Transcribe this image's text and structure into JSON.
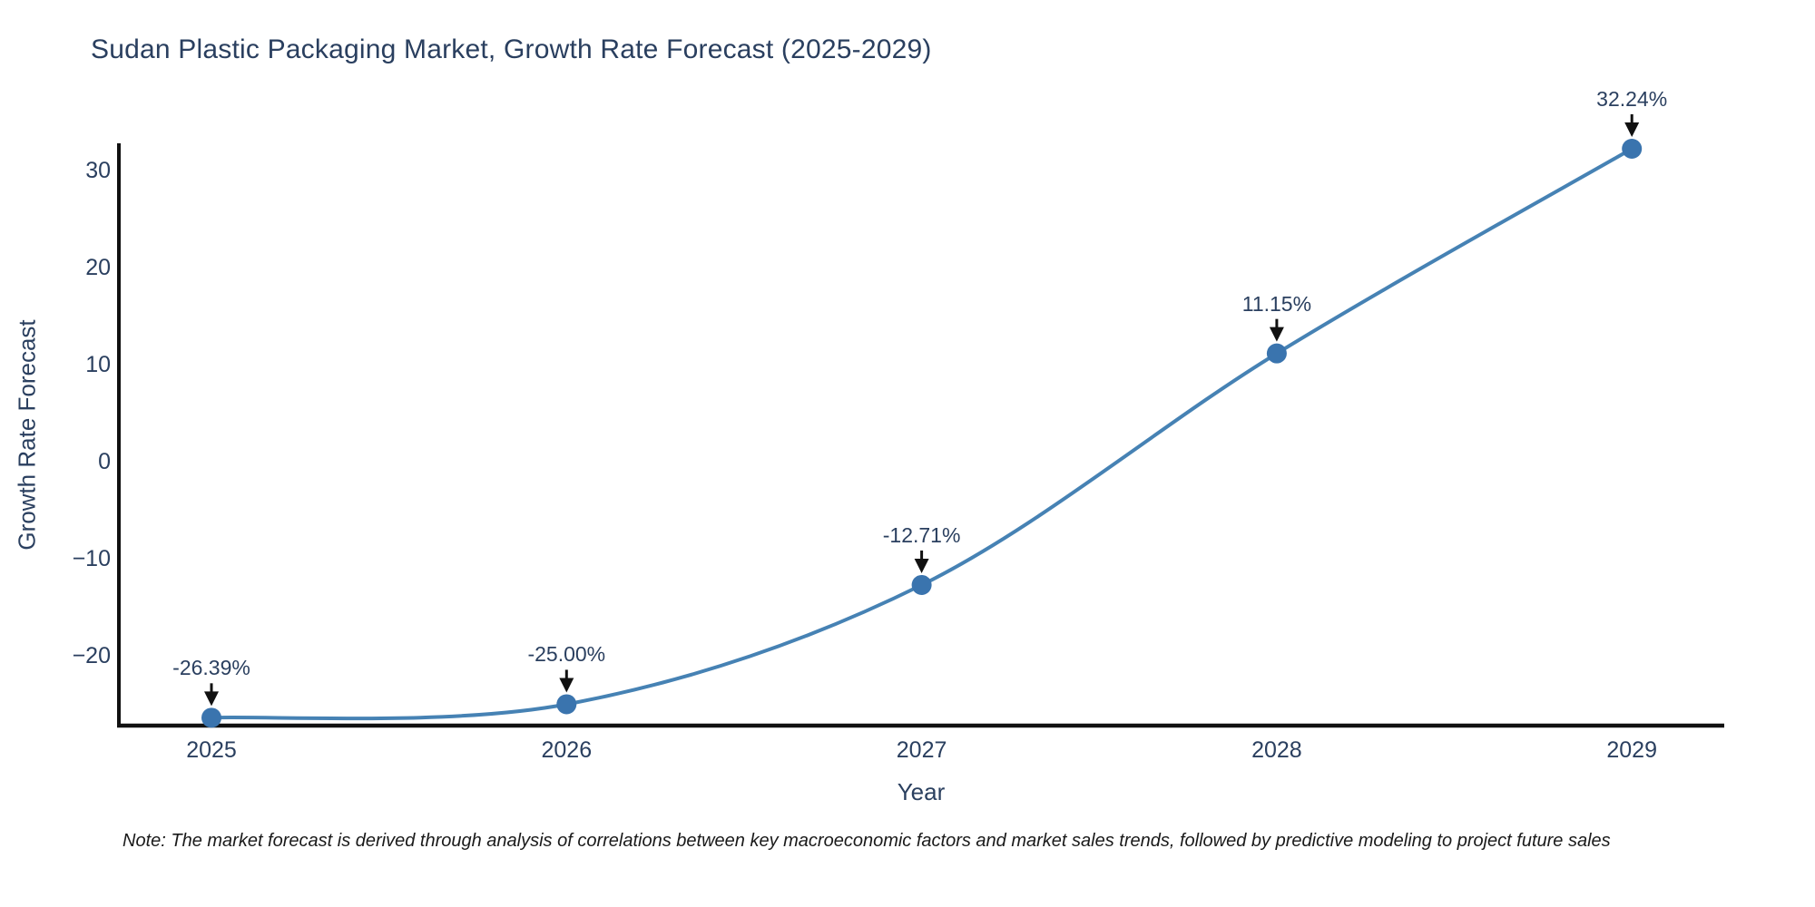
{
  "chart_data": {
    "type": "line",
    "title": "Sudan Plastic Packaging Market, Growth Rate Forecast (2025-2029)",
    "xlabel": "Year",
    "ylabel": "Growth Rate Forecast",
    "x": [
      2025,
      2026,
      2027,
      2028,
      2029
    ],
    "values": [
      -26.39,
      -25.0,
      -12.71,
      11.15,
      32.24
    ],
    "point_labels": [
      "-26.39%",
      "-25.00%",
      "-12.71%",
      "11.15%",
      "32.24%"
    ],
    "xtick_labels": [
      "2025",
      "2026",
      "2027",
      "2028",
      "2029"
    ],
    "ytick_values": [
      30,
      20,
      10,
      0,
      -10,
      -20
    ],
    "ytick_labels": [
      "30",
      "20",
      "10",
      "0",
      "−10",
      "−20"
    ],
    "ylim": [
      -27.2,
      32.8
    ],
    "grid": false,
    "legend": false,
    "line_color": "#4682b4",
    "marker_color": "#3a74ae",
    "axis_color": "#111111",
    "arrow_color": "#111111",
    "text_color": "#2a3f5f",
    "note": "Note: The market forecast is derived through analysis of correlations between key macroeconomic factors and market sales trends, followed by predictive modeling to project future sales"
  }
}
